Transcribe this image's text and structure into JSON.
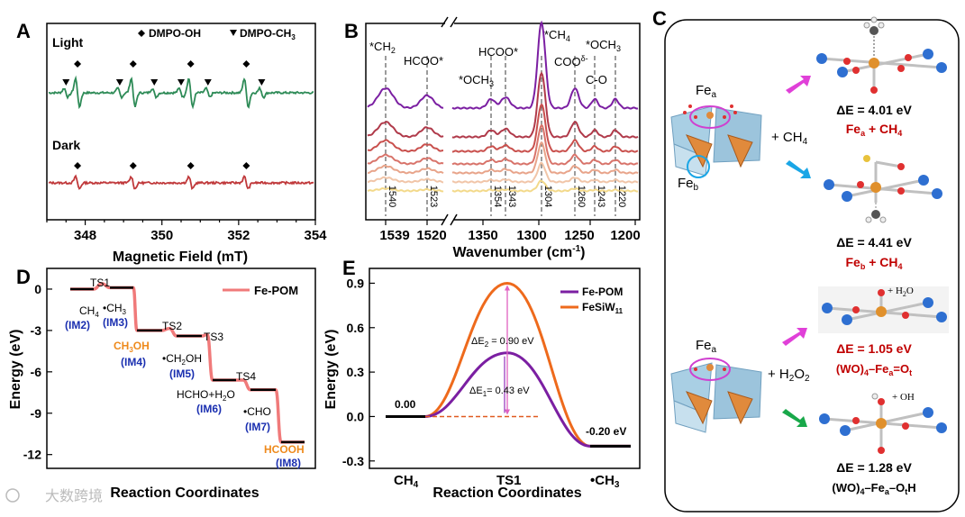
{
  "colors": {
    "green": "#2e8b57",
    "red": "#c0393b",
    "purple": "#7b1fa2",
    "orange": "#ee6a1c",
    "salmon": "#f07a7a",
    "magenta": "#e040c8",
    "cyan": "#1aa6e6",
    "navy": "#1a2fb0",
    "pink_arrow": "#e040d8",
    "green_arrow": "#19a84a",
    "dark_red": "#c00000"
  },
  "panel_letters": [
    "A",
    "B",
    "C",
    "D",
    "E"
  ],
  "chart_data": [
    {
      "panel": "A",
      "type": "line",
      "xlabel": "Magnetic Field (mT)",
      "xlim": [
        347,
        354
      ],
      "xticks": [
        "348",
        "350",
        "352",
        "354"
      ],
      "legend": [
        {
          "marker": "diamond",
          "label": "DMPO-OH"
        },
        {
          "marker": "triangle-down",
          "label": "DMPO-CH3"
        }
      ],
      "series": [
        {
          "name": "Light",
          "color": "#2e8b57",
          "oh_peaks_mT": [
            347.8,
            349.25,
            350.75,
            352.2
          ],
          "ch3_peaks_mT": [
            347.5,
            348.9,
            349.8,
            350.5,
            351.2,
            352.6
          ]
        },
        {
          "name": "Dark",
          "color": "#c0393b",
          "oh_peaks_mT": [
            347.8,
            349.25,
            350.75,
            352.2
          ]
        }
      ]
    },
    {
      "panel": "B",
      "type": "line",
      "xlabel": "Wavenumber (cm⁻¹)",
      "xtick_labels": [
        "1539",
        "1520",
        "1350",
        "1300",
        "1250",
        "1200"
      ],
      "reference_lines": [
        "1540",
        "1523",
        "1354",
        "1343",
        "1304",
        "1260",
        "1243",
        "1220"
      ],
      "annotations": [
        "*CH2",
        "HCOO*",
        "*OCH3",
        "HCOO*",
        "*CH4",
        "COOδ-",
        "C-O",
        "*OCH3"
      ],
      "series_colors": [
        "#7b1fa2",
        "#b03a4a",
        "#c9504d",
        "#d8736a",
        "#e8a48a",
        "#f1c5a8",
        "#f3d98a"
      ]
    },
    {
      "panel": "D",
      "type": "line",
      "ylabel": "Energy (eV)",
      "xlabel": "Reaction Coordinates",
      "legend": "Fe-POM",
      "ylim": [
        -13,
        1.5
      ],
      "yticks": [
        "0",
        "-3",
        "-6",
        "-9",
        "-12"
      ],
      "states": [
        {
          "label": "CH4",
          "code": "(IM2)",
          "energy": 0.0
        },
        {
          "label": "TS1",
          "energy": 0.4
        },
        {
          "label": "•CH3",
          "code": "(IM3)",
          "energy": 0.1
        },
        {
          "label": "CH3OH",
          "code": "(IM4)",
          "energy": -3.0
        },
        {
          "label": "TS2",
          "energy": -2.85
        },
        {
          "label": "•CH2OH",
          "code": "(IM5)",
          "energy": -3.4
        },
        {
          "label": "TS3",
          "energy": -3.3
        },
        {
          "label": "HCHO+H2O",
          "code": "(IM6)",
          "energy": -6.6
        },
        {
          "label": "TS4",
          "energy": -6.6
        },
        {
          "label": "•CHO",
          "code": "(IM7)",
          "energy": -7.3
        },
        {
          "label": "HCOOH",
          "code": "(IM8)",
          "energy": -11.1
        }
      ]
    },
    {
      "panel": "E",
      "type": "line",
      "ylabel": "Energy (eV)",
      "xlabel": "Reaction Coordinates",
      "ylim": [
        -0.35,
        1.0
      ],
      "yticks": [
        "0.9",
        "0.6",
        "0.3",
        "0.0",
        "-0.3"
      ],
      "categories": [
        "CH4",
        "TS1",
        "•CH3"
      ],
      "series": [
        {
          "name": "Fe-POM",
          "color": "#7b1fa2",
          "values": [
            0.0,
            0.43,
            -0.2
          ]
        },
        {
          "name": "FeSiW11",
          "color": "#ee6a1c",
          "values": [
            0.0,
            0.9,
            -0.2
          ]
        }
      ],
      "annotations": {
        "start": "0.00",
        "end": "-0.20 eV",
        "de1": "ΔE1 = 0.43 eV",
        "de2": "ΔE2 = 0.90 eV"
      }
    }
  ],
  "panel_c": {
    "fea": "Fea",
    "feb": "Feb",
    "plus_ch4": "+ CH4",
    "plus_h2o2": "+ H2O2",
    "plus_h2o": "+ H2O",
    "plus_oh": "+ OH",
    "e1": "ΔE = 4.01 eV",
    "e1_label": "Fea + CH4",
    "e2": "ΔE = 4.41 eV",
    "e2_label": "Feb + CH4",
    "e3": "ΔE = 1.05 eV",
    "e3_label": "(WO)4–Fea=Ot",
    "e4": "ΔE = 1.28 eV",
    "e4_label": "(WO)4–Fea–OtH"
  },
  "watermark": "大数跨境"
}
